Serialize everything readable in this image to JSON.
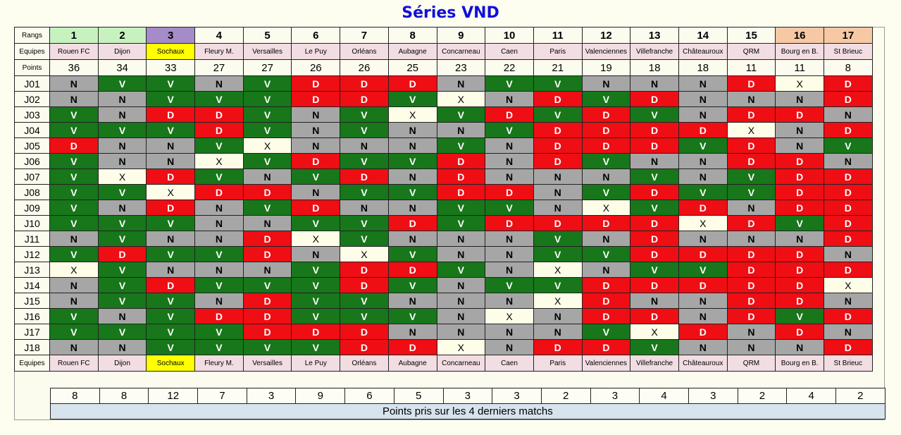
{
  "title": "Séries VND",
  "labels": {
    "ranks": "Rangs",
    "teams": "Equipes",
    "points": "Points",
    "recent_caption": "Points pris sur les 4 derniers matchs"
  },
  "colors": {
    "V": "#17771a",
    "N": "#a6a6a6",
    "D": "#ee0e14",
    "X": "#fdfde8",
    "team_bg": "#f2dde3",
    "rank_green": "#c7f2c0",
    "rank_purple": "#a58bc8",
    "rank_orange": "#f6c8a3",
    "highlight_yellow": "#ffff00",
    "title": "#1010d8"
  },
  "teams": [
    {
      "rank": "1",
      "name": "Rouen FC",
      "points": "36",
      "recent": "8",
      "rank_style": "green",
      "name_style": "pink"
    },
    {
      "rank": "2",
      "name": "Dijon",
      "points": "34",
      "recent": "8",
      "rank_style": "green",
      "name_style": "pink"
    },
    {
      "rank": "3",
      "name": "Sochaux",
      "points": "33",
      "recent": "12",
      "rank_style": "purple",
      "name_style": "yellow"
    },
    {
      "rank": "4",
      "name": "Fleury M.",
      "points": "27",
      "recent": "7",
      "rank_style": "plain",
      "name_style": "pink"
    },
    {
      "rank": "5",
      "name": "Versailles",
      "points": "27",
      "recent": "3",
      "rank_style": "plain",
      "name_style": "pink"
    },
    {
      "rank": "6",
      "name": "Le Puy",
      "points": "26",
      "recent": "9",
      "rank_style": "plain",
      "name_style": "pink"
    },
    {
      "rank": "7",
      "name": "Orléans",
      "points": "26",
      "recent": "6",
      "rank_style": "plain",
      "name_style": "pink"
    },
    {
      "rank": "8",
      "name": "Aubagne",
      "points": "25",
      "recent": "5",
      "rank_style": "plain",
      "name_style": "pink"
    },
    {
      "rank": "9",
      "name": "Concarneau",
      "points": "23",
      "recent": "3",
      "rank_style": "plain",
      "name_style": "pink"
    },
    {
      "rank": "10",
      "name": "Caen",
      "points": "22",
      "recent": "3",
      "rank_style": "plain",
      "name_style": "pink"
    },
    {
      "rank": "11",
      "name": "Paris",
      "points": "21",
      "recent": "2",
      "rank_style": "plain",
      "name_style": "pink"
    },
    {
      "rank": "12",
      "name": "Valenciennes",
      "points": "19",
      "recent": "3",
      "rank_style": "plain",
      "name_style": "pink"
    },
    {
      "rank": "13",
      "name": "Villefranche",
      "points": "18",
      "recent": "4",
      "rank_style": "plain",
      "name_style": "pink"
    },
    {
      "rank": "14",
      "name": "Châteauroux",
      "points": "18",
      "recent": "3",
      "rank_style": "plain",
      "name_style": "pink"
    },
    {
      "rank": "15",
      "name": "QRM",
      "points": "11",
      "recent": "2",
      "rank_style": "plain",
      "name_style": "pink"
    },
    {
      "rank": "16",
      "name": "Bourg en B.",
      "points": "11",
      "recent": "4",
      "rank_style": "orange",
      "name_style": "pink"
    },
    {
      "rank": "17",
      "name": "St Brieuc",
      "points": "8",
      "recent": "2",
      "rank_style": "orange",
      "name_style": "pink"
    }
  ],
  "matchdays": [
    {
      "label": "J01",
      "results": [
        "N",
        "V",
        "V",
        "N",
        "V",
        "D",
        "D",
        "D",
        "N",
        "V",
        "V",
        "N",
        "N",
        "N",
        "D",
        "X",
        "D"
      ]
    },
    {
      "label": "J02",
      "results": [
        "N",
        "N",
        "V",
        "V",
        "V",
        "D",
        "D",
        "V",
        "X",
        "N",
        "D",
        "V",
        "D",
        "N",
        "N",
        "N",
        "D"
      ]
    },
    {
      "label": "J03",
      "results": [
        "V",
        "N",
        "D",
        "D",
        "V",
        "N",
        "V",
        "X",
        "V",
        "D",
        "V",
        "D",
        "V",
        "N",
        "D",
        "D",
        "N"
      ]
    },
    {
      "label": "J04",
      "results": [
        "V",
        "V",
        "V",
        "D",
        "V",
        "N",
        "V",
        "N",
        "N",
        "V",
        "D",
        "D",
        "D",
        "D",
        "X",
        "N",
        "D"
      ]
    },
    {
      "label": "J05",
      "results": [
        "D",
        "N",
        "N",
        "V",
        "X",
        "N",
        "N",
        "N",
        "V",
        "N",
        "D",
        "D",
        "D",
        "V",
        "D",
        "N",
        "V"
      ]
    },
    {
      "label": "J06",
      "results": [
        "V",
        "N",
        "N",
        "X",
        "V",
        "D",
        "V",
        "V",
        "D",
        "N",
        "D",
        "V",
        "N",
        "N",
        "D",
        "D",
        "N"
      ]
    },
    {
      "label": "J07",
      "results": [
        "V",
        "X",
        "D",
        "V",
        "N",
        "V",
        "D",
        "N",
        "D",
        "N",
        "N",
        "N",
        "V",
        "N",
        "V",
        "D",
        "D"
      ]
    },
    {
      "label": "J08",
      "results": [
        "V",
        "V",
        "X",
        "D",
        "D",
        "N",
        "V",
        "V",
        "D",
        "D",
        "N",
        "V",
        "D",
        "V",
        "V",
        "D",
        "D"
      ]
    },
    {
      "label": "J09",
      "results": [
        "V",
        "N",
        "D",
        "N",
        "V",
        "D",
        "N",
        "N",
        "V",
        "V",
        "N",
        "X",
        "V",
        "D",
        "N",
        "D",
        "D"
      ]
    },
    {
      "label": "J10",
      "results": [
        "V",
        "V",
        "V",
        "N",
        "N",
        "V",
        "V",
        "D",
        "V",
        "D",
        "D",
        "D",
        "D",
        "X",
        "D",
        "V",
        "D"
      ]
    },
    {
      "label": "J11",
      "results": [
        "N",
        "V",
        "N",
        "N",
        "D",
        "X",
        "V",
        "N",
        "N",
        "N",
        "V",
        "N",
        "D",
        "N",
        "N",
        "N",
        "D"
      ]
    },
    {
      "label": "J12",
      "results": [
        "V",
        "D",
        "V",
        "V",
        "D",
        "N",
        "X",
        "V",
        "N",
        "N",
        "V",
        "V",
        "D",
        "D",
        "D",
        "D",
        "N"
      ]
    },
    {
      "label": "J13",
      "results": [
        "X",
        "V",
        "N",
        "N",
        "N",
        "V",
        "D",
        "D",
        "V",
        "N",
        "X",
        "N",
        "V",
        "V",
        "D",
        "D",
        "D"
      ]
    },
    {
      "label": "J14",
      "results": [
        "N",
        "V",
        "D",
        "V",
        "V",
        "V",
        "D",
        "V",
        "N",
        "V",
        "V",
        "D",
        "D",
        "D",
        "D",
        "D",
        "X"
      ]
    },
    {
      "label": "J15",
      "results": [
        "N",
        "V",
        "V",
        "N",
        "D",
        "V",
        "V",
        "N",
        "N",
        "N",
        "X",
        "D",
        "N",
        "N",
        "D",
        "D",
        "N"
      ]
    },
    {
      "label": "J16",
      "results": [
        "V",
        "N",
        "V",
        "D",
        "D",
        "V",
        "V",
        "V",
        "N",
        "X",
        "N",
        "D",
        "D",
        "N",
        "D",
        "V",
        "D"
      ]
    },
    {
      "label": "J17",
      "results": [
        "V",
        "V",
        "V",
        "V",
        "D",
        "D",
        "D",
        "N",
        "N",
        "N",
        "N",
        "V",
        "X",
        "D",
        "N",
        "D",
        "N"
      ]
    },
    {
      "label": "J18",
      "results": [
        "N",
        "N",
        "V",
        "V",
        "V",
        "V",
        "D",
        "D",
        "X",
        "N",
        "D",
        "D",
        "V",
        "N",
        "N",
        "N",
        "D"
      ]
    }
  ]
}
